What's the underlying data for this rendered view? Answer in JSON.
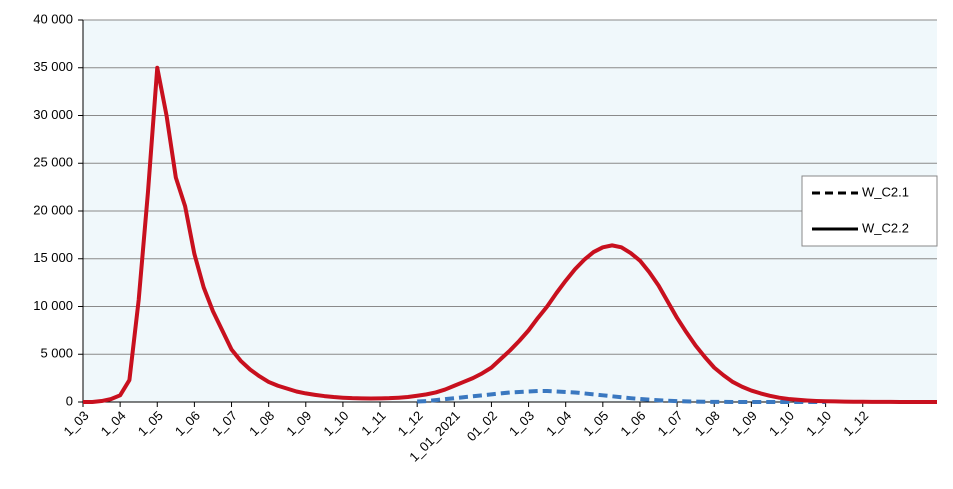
{
  "chart_data": {
    "type": "line",
    "categories": [
      "1_03",
      null,
      null,
      null,
      "1_04",
      null,
      null,
      null,
      "1_05",
      null,
      null,
      null,
      "1_06",
      null,
      null,
      null,
      "1_07",
      null,
      null,
      null,
      "1_08",
      null,
      null,
      null,
      "1_09",
      null,
      null,
      null,
      "1_10",
      null,
      null,
      null,
      "1_11",
      null,
      null,
      null,
      "1_12",
      null,
      null,
      null,
      "1_01_2021",
      null,
      null,
      null,
      "01_02",
      null,
      null,
      null,
      "1_03",
      null,
      null,
      null,
      "1_04",
      null,
      null,
      null,
      "1_05",
      null,
      null,
      null,
      "1_06",
      null,
      null,
      null,
      "1_07",
      null,
      null,
      null,
      "1_08",
      null,
      null,
      null,
      "1_09",
      null,
      null,
      null,
      "1_10",
      null,
      null,
      null,
      "1_10",
      null,
      null,
      null,
      "1_12",
      null,
      null,
      null,
      null,
      null,
      null,
      null,
      null
    ],
    "series": [
      {
        "name": "W_C2.1",
        "color": "#3a78c0",
        "dashed": true,
        "values": [
          null,
          null,
          null,
          null,
          null,
          null,
          null,
          null,
          null,
          null,
          null,
          null,
          null,
          null,
          null,
          null,
          null,
          null,
          null,
          null,
          null,
          null,
          null,
          null,
          null,
          null,
          null,
          null,
          null,
          null,
          null,
          null,
          null,
          null,
          null,
          null,
          50,
          100,
          200,
          300,
          400,
          500,
          600,
          700,
          800,
          900,
          1000,
          1050,
          1100,
          1150,
          1150,
          1100,
          1050,
          1000,
          900,
          800,
          700,
          600,
          500,
          400,
          320,
          250,
          180,
          130,
          90,
          60,
          40,
          25,
          15,
          10,
          5,
          5,
          5,
          5,
          5,
          5,
          5,
          5,
          5,
          5,
          5,
          null,
          null,
          null,
          null,
          null,
          null,
          null,
          null,
          null,
          null,
          null,
          null
        ]
      },
      {
        "name": "W_C2.2",
        "color": "#c8101e",
        "dashed": false,
        "values": [
          0,
          0,
          100,
          300,
          700,
          2300,
          10700,
          22000,
          35000,
          30000,
          23500,
          20500,
          15500,
          12000,
          9500,
          7500,
          5500,
          4300,
          3400,
          2700,
          2100,
          1700,
          1400,
          1100,
          900,
          750,
          620,
          520,
          450,
          400,
          380,
          370,
          380,
          400,
          450,
          520,
          650,
          800,
          1000,
          1300,
          1700,
          2100,
          2500,
          3000,
          3600,
          4500,
          5400,
          6400,
          7500,
          8800,
          10000,
          11400,
          12700,
          13900,
          14900,
          15700,
          16200,
          16400,
          16200,
          15600,
          14800,
          13600,
          12200,
          10500,
          8800,
          7300,
          5900,
          4700,
          3600,
          2800,
          2100,
          1600,
          1200,
          900,
          650,
          450,
          320,
          230,
          160,
          110,
          80,
          60,
          40,
          30,
          20,
          15,
          10,
          10,
          5,
          5,
          5,
          0,
          0
        ]
      }
    ],
    "ylim": [
      0,
      40000
    ],
    "yticks": [
      {
        "value": 0,
        "label": "0"
      },
      {
        "value": 5000,
        "label": "5 000"
      },
      {
        "value": 10000,
        "label": "10 000"
      },
      {
        "value": 15000,
        "label": "15 000"
      },
      {
        "value": 20000,
        "label": "20 000"
      },
      {
        "value": 25000,
        "label": "25 000"
      },
      {
        "value": 30000,
        "label": "30 000"
      },
      {
        "value": 35000,
        "label": "35 000"
      },
      {
        "value": 40000,
        "label": "40 000"
      }
    ],
    "grid": true,
    "legend": "right",
    "legend_line_color": "#000000",
    "background": "#f0f8fb"
  }
}
